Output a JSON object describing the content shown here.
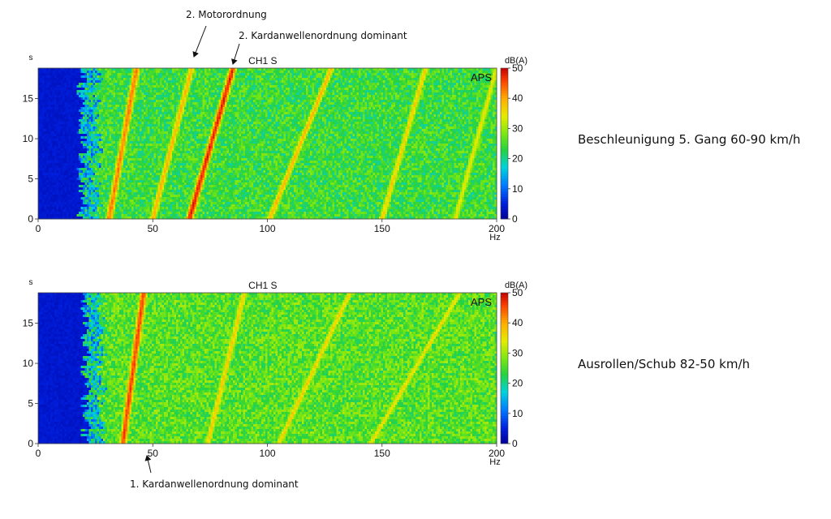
{
  "chart_data": [
    {
      "type": "heatmap",
      "title": "CH1 S",
      "tag": "APS",
      "x_unit": "Hz",
      "y_unit": "s",
      "colorbar_unit": "dB(A)",
      "xlim": [
        0,
        200
      ],
      "ylim": [
        0,
        18.8
      ],
      "clim": [
        0,
        50
      ],
      "x_ticks": [
        "0",
        "50",
        "100",
        "150",
        "200"
      ],
      "y_ticks": [
        "0",
        "5",
        "10",
        "15"
      ],
      "colorbar_ticks": [
        "0",
        "10",
        "20",
        "30",
        "40",
        "50"
      ],
      "background_level_db": 24,
      "low_frequency_cutoff_hz": 22,
      "ridges": [
        {
          "f_start": 31,
          "f_end": 43,
          "level_db": 44
        },
        {
          "f_start": 50,
          "f_end": 67,
          "level_db": 40
        },
        {
          "f_start": 66,
          "f_end": 85,
          "level_db": 49
        },
        {
          "f_start": 101,
          "f_end": 128,
          "level_db": 40
        },
        {
          "f_start": 150,
          "f_end": 169,
          "level_db": 38
        },
        {
          "f_start": 182,
          "f_end": 200,
          "level_db": 36
        }
      ]
    },
    {
      "type": "heatmap",
      "title": "CH1 S",
      "tag": "APS",
      "x_unit": "Hz",
      "y_unit": "s",
      "colorbar_unit": "dB(A)",
      "xlim": [
        0,
        200
      ],
      "ylim": [
        0,
        18.8
      ],
      "clim": [
        0,
        50
      ],
      "x_ticks": [
        "0",
        "50",
        "100",
        "150",
        "200"
      ],
      "y_ticks": [
        "0",
        "5",
        "10",
        "15"
      ],
      "colorbar_ticks": [
        "0",
        "10",
        "20",
        "30",
        "40",
        "50"
      ],
      "background_level_db": 26,
      "low_frequency_cutoff_hz": 24,
      "ridges": [
        {
          "f_start": 37,
          "f_end": 46,
          "level_db": 47
        },
        {
          "f_start": 74,
          "f_end": 90,
          "level_db": 38
        },
        {
          "f_start": 105,
          "f_end": 136,
          "level_db": 38
        },
        {
          "f_start": 145,
          "f_end": 184,
          "level_db": 37
        }
      ]
    }
  ],
  "captions": {
    "top": "Beschleunigung 5. Gang 60-90 km/h",
    "bottom": "Ausrollen/Schub 82-50 km/h"
  },
  "annotations": {
    "motor_order_2": "2. Motorordnung",
    "cardan_order_2": "2. Kardanwellenordnung dominant",
    "cardan_order_1": "1. Kardanwellenordnung dominant"
  }
}
